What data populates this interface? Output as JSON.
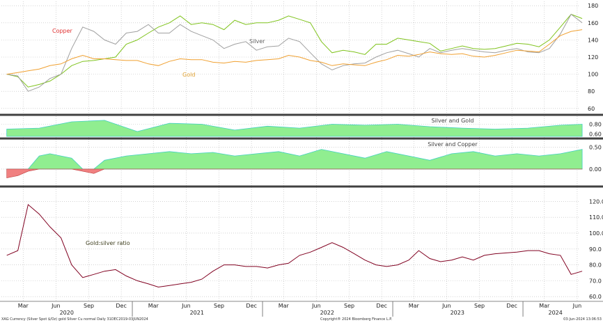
{
  "chart_data": [
    {
      "panel": "top",
      "type": "line",
      "x": [
        "2020-01",
        "2020-02",
        "2020-03",
        "2020-04",
        "2020-05",
        "2020-06",
        "2020-07",
        "2020-08",
        "2020-09",
        "2020-10",
        "2020-11",
        "2020-12",
        "2021-01",
        "2021-02",
        "2021-03",
        "2021-04",
        "2021-05",
        "2021-06",
        "2021-07",
        "2021-08",
        "2021-09",
        "2021-10",
        "2021-11",
        "2021-12",
        "2022-01",
        "2022-02",
        "2022-03",
        "2022-04",
        "2022-05",
        "2022-06",
        "2022-07",
        "2022-08",
        "2022-09",
        "2022-10",
        "2022-11",
        "2022-12",
        "2023-01",
        "2023-02",
        "2023-03",
        "2023-04",
        "2023-05",
        "2023-06",
        "2023-07",
        "2023-08",
        "2023-09",
        "2023-10",
        "2023-11",
        "2023-12",
        "2024-01",
        "2024-02",
        "2024-03",
        "2024-04",
        "2024-05",
        "2024-06"
      ],
      "series": [
        {
          "name": "Copper",
          "color": "#7fc31c",
          "values": [
            100,
            97,
            85,
            88,
            92,
            100,
            110,
            115,
            116,
            118,
            120,
            135,
            140,
            148,
            155,
            160,
            168,
            158,
            160,
            158,
            152,
            163,
            158,
            160,
            160,
            163,
            168,
            164,
            160,
            138,
            125,
            128,
            126,
            123,
            135,
            135,
            142,
            140,
            138,
            136,
            127,
            130,
            133,
            130,
            129,
            130,
            133,
            136,
            135,
            132,
            140,
            155,
            170,
            165
          ]
        },
        {
          "name": "Silver",
          "color": "#a0a0a0",
          "values": [
            100,
            98,
            80,
            85,
            95,
            100,
            130,
            155,
            150,
            140,
            135,
            148,
            150,
            158,
            148,
            148,
            158,
            150,
            145,
            140,
            130,
            135,
            138,
            128,
            132,
            133,
            142,
            138,
            125,
            112,
            105,
            110,
            112,
            113,
            120,
            125,
            128,
            124,
            120,
            130,
            125,
            128,
            130,
            128,
            126,
            125,
            128,
            130,
            126,
            125,
            130,
            147,
            170,
            160
          ]
        },
        {
          "name": "Gold",
          "color": "#f0a030",
          "values": [
            100,
            102,
            104,
            106,
            110,
            112,
            118,
            122,
            118,
            118,
            117,
            116,
            116,
            112,
            110,
            115,
            118,
            117,
            117,
            114,
            113,
            115,
            114,
            116,
            117,
            118,
            122,
            120,
            116,
            114,
            110,
            112,
            111,
            110,
            114,
            117,
            122,
            121,
            123,
            126,
            124,
            123,
            124,
            121,
            120,
            122,
            125,
            128,
            127,
            126,
            135,
            145,
            150,
            152
          ]
        }
      ],
      "annotations": [
        "Copper",
        "Silver",
        "Gold"
      ],
      "ylim": [
        55,
        185
      ],
      "yticks": [
        60,
        80,
        100,
        120,
        140,
        160,
        180
      ]
    },
    {
      "panel": "correlation-1",
      "type": "area",
      "title": "Silver and Gold",
      "x": [
        "2020-01",
        "2020-04",
        "2020-07",
        "2020-10",
        "2021-01",
        "2021-04",
        "2021-07",
        "2021-10",
        "2022-01",
        "2022-04",
        "2022-07",
        "2022-10",
        "2023-01",
        "2023-04",
        "2023-07",
        "2023-10",
        "2024-01",
        "2024-04",
        "2024-06"
      ],
      "values": [
        0.7,
        0.72,
        0.85,
        0.88,
        0.65,
        0.82,
        0.8,
        0.68,
        0.76,
        0.72,
        0.8,
        0.78,
        0.8,
        0.75,
        0.72,
        0.7,
        0.72,
        0.78,
        0.8
      ],
      "color": "#90ee90",
      "ylim": [
        0.55,
        0.95
      ],
      "yticks": [
        0.6,
        0.8
      ]
    },
    {
      "panel": "correlation-2",
      "type": "area",
      "title": "Silver and Copper",
      "x": [
        "2020-01",
        "2020-02",
        "2020-03",
        "2020-04",
        "2020-05",
        "2020-06",
        "2020-07",
        "2020-08",
        "2020-09",
        "2020-10",
        "2020-12",
        "2021-02",
        "2021-04",
        "2021-06",
        "2021-08",
        "2021-10",
        "2021-12",
        "2022-02",
        "2022-04",
        "2022-06",
        "2022-08",
        "2022-10",
        "2022-12",
        "2023-02",
        "2023-04",
        "2023-06",
        "2023-08",
        "2023-10",
        "2023-12",
        "2024-02",
        "2024-04",
        "2024-06"
      ],
      "values": [
        -0.2,
        -0.15,
        -0.05,
        0.3,
        0.35,
        0.3,
        0.25,
        -0.05,
        -0.1,
        0.2,
        0.3,
        0.35,
        0.4,
        0.35,
        0.38,
        0.3,
        0.35,
        0.4,
        0.3,
        0.45,
        0.35,
        0.25,
        0.4,
        0.3,
        0.2,
        0.35,
        0.4,
        0.3,
        0.35,
        0.3,
        0.35,
        0.45
      ],
      "color": "#90ee90",
      "negative_color": "#f08080",
      "ylim": [
        -0.35,
        0.65
      ],
      "yticks": [
        0.0,
        0.5
      ]
    },
    {
      "panel": "ratio",
      "type": "line",
      "annotation": "Gold:silver ratio",
      "x": [
        "2020-01",
        "2020-02",
        "2020-03",
        "2020-04",
        "2020-05",
        "2020-06",
        "2020-07",
        "2020-08",
        "2020-09",
        "2020-10",
        "2020-11",
        "2020-12",
        "2021-01",
        "2021-02",
        "2021-03",
        "2021-04",
        "2021-05",
        "2021-06",
        "2021-07",
        "2021-08",
        "2021-09",
        "2021-10",
        "2021-11",
        "2021-12",
        "2022-01",
        "2022-02",
        "2022-03",
        "2022-04",
        "2022-05",
        "2022-06",
        "2022-07",
        "2022-08",
        "2022-09",
        "2022-10",
        "2022-11",
        "2022-12",
        "2023-01",
        "2023-02",
        "2023-03",
        "2023-04",
        "2023-05",
        "2023-06",
        "2023-07",
        "2023-08",
        "2023-09",
        "2023-10",
        "2023-12",
        "2024-01",
        "2024-02",
        "2024-03",
        "2024-04",
        "2024-05",
        "2024-06"
      ],
      "values": [
        86,
        89,
        118,
        112,
        104,
        97,
        80,
        72,
        74,
        76,
        77,
        73,
        70,
        68,
        66,
        67,
        68,
        69,
        71,
        76,
        80,
        80,
        79,
        79,
        78,
        80,
        81,
        86,
        88,
        91,
        94,
        91,
        87,
        83,
        80,
        79,
        80,
        83,
        89,
        84,
        82,
        83,
        85,
        83,
        86,
        87,
        88,
        89,
        89,
        87,
        86,
        74,
        76
      ],
      "color": "#800020",
      "ylim": [
        57,
        125
      ],
      "yticks": [
        60.0,
        70.0,
        80.0,
        90.0,
        100.0,
        110.0,
        120.0
      ]
    }
  ],
  "x_axis": {
    "start": "2019-12-31",
    "end": "2024-06-07",
    "ticks": [
      {
        "date": "2020-03-01",
        "label": "Mar"
      },
      {
        "date": "2020-06-01",
        "label": "Jun"
      },
      {
        "date": "2020-09-01",
        "label": "Sep"
      },
      {
        "date": "2020-12-01",
        "label": "Dec"
      },
      {
        "date": "2021-03-01",
        "label": "Mar"
      },
      {
        "date": "2021-06-01",
        "label": "Jun"
      },
      {
        "date": "2021-09-01",
        "label": "Sep"
      },
      {
        "date": "2021-12-01",
        "label": "Dec"
      },
      {
        "date": "2022-03-01",
        "label": "Mar"
      },
      {
        "date": "2022-06-01",
        "label": "Jun"
      },
      {
        "date": "2022-09-01",
        "label": "Sep"
      },
      {
        "date": "2022-12-01",
        "label": "Dec"
      },
      {
        "date": "2023-03-01",
        "label": "Mar"
      },
      {
        "date": "2023-06-01",
        "label": "Jun"
      },
      {
        "date": "2023-09-01",
        "label": "Sep"
      },
      {
        "date": "2023-12-01",
        "label": "Dec"
      },
      {
        "date": "2024-03-01",
        "label": "Mar"
      },
      {
        "date": "2024-06-01",
        "label": "Jun"
      }
    ],
    "years": [
      {
        "date": "2020-07-01",
        "label": "2020"
      },
      {
        "date": "2021-07-01",
        "label": "2021"
      },
      {
        "date": "2022-07-01",
        "label": "2022"
      },
      {
        "date": "2023-07-01",
        "label": "2023"
      },
      {
        "date": "2024-04-01",
        "label": "2024"
      }
    ],
    "year_dividers": [
      "2020-01-01",
      "2021-01-01",
      "2022-01-01",
      "2023-01-01",
      "2024-01-01"
    ]
  },
  "footer": {
    "left": "XAG Currency (Silver Spot $/Oz) gold Silver Cu normal  Daily 31DEC2019-03JUN2024",
    "center": "Copyright® 2024 Bloomberg Finance L.P.",
    "right": "03-Jun-2024 13:06:53"
  },
  "colors": {
    "grid": "#b8b8b8",
    "divider": "#404040",
    "text": "#202020"
  }
}
